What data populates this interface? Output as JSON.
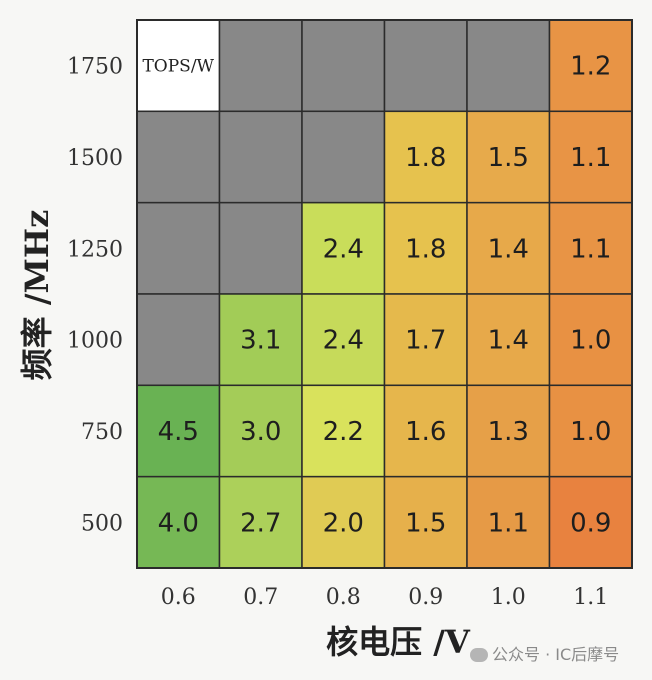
{
  "chart_data": {
    "type": "heatmap",
    "xlabel": "核电压 /V",
    "ylabel": "频率 /MHz",
    "x_categories": [
      "0.6",
      "0.7",
      "0.8",
      "0.9",
      "1.0",
      "1.1"
    ],
    "y_categories": [
      "1750",
      "1500",
      "1250",
      "1000",
      "750",
      "500"
    ],
    "corner_label": "TOPS/W",
    "values": [
      [
        null,
        null,
        null,
        null,
        null,
        "1.2"
      ],
      [
        null,
        null,
        null,
        "1.8",
        "1.5",
        "1.1"
      ],
      [
        null,
        null,
        "2.4",
        "1.8",
        "1.4",
        "1.1"
      ],
      [
        null,
        "3.1",
        "2.4",
        "1.7",
        "1.4",
        "1.0"
      ],
      [
        "4.5",
        "3.0",
        "2.2",
        "1.6",
        "1.3",
        "1.0"
      ],
      [
        "4.0",
        "2.7",
        "2.0",
        "1.5",
        "1.1",
        "0.9"
      ]
    ],
    "colors": [
      [
        "#ffffff",
        "#888888",
        "#888888",
        "#888888",
        "#888888",
        "#e89445"
      ],
      [
        "#888888",
        "#888888",
        "#888888",
        "#e6c24e",
        "#e7aa4b",
        "#e89445"
      ],
      [
        "#888888",
        "#888888",
        "#c9dd5a",
        "#e6c24e",
        "#e7a94a",
        "#e89445"
      ],
      [
        "#888888",
        "#a2cc57",
        "#c6da5a",
        "#e5b94c",
        "#e7a94a",
        "#e89143"
      ],
      [
        "#69b253",
        "#a4cc58",
        "#d9e25c",
        "#e6b64c",
        "#e6a048",
        "#e89143"
      ],
      [
        "#76b855",
        "#acd05a",
        "#e0cb54",
        "#e6b04b",
        "#e69a46",
        "#e8823f"
      ]
    ],
    "empty_color": "#888888"
  },
  "watermark": {
    "text": "公众号 · IC后摩号"
  }
}
